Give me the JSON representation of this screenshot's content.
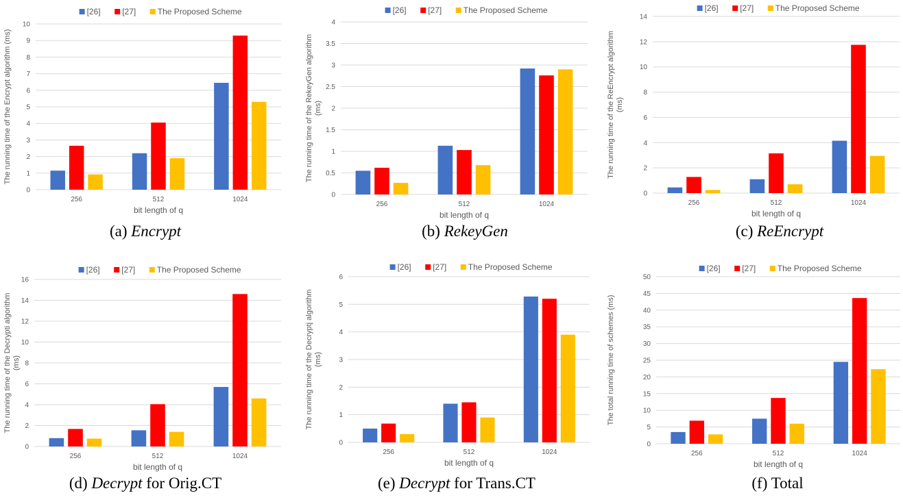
{
  "colors": {
    "s26": "#4472C4",
    "s27": "#FF0000",
    "proposed": "#FFC000",
    "grid": "#D9D9D9",
    "text": "#595959"
  },
  "chart_data": [
    {
      "type": "bar",
      "categories": [
        "256",
        "512",
        "1024"
      ],
      "series": [
        {
          "name": "[26]",
          "values": [
            1.15,
            2.2,
            6.45
          ]
        },
        {
          "name": "[27]",
          "values": [
            2.65,
            4.05,
            9.3
          ]
        },
        {
          "name": "The Proposed Scheme",
          "values": [
            0.92,
            1.9,
            5.3
          ]
        }
      ],
      "ylim": [
        0,
        10
      ],
      "yticks": [
        0,
        1,
        2,
        3,
        4,
        5,
        6,
        7,
        8,
        9,
        10
      ],
      "xlabel": "bit length of q",
      "ylabel": [
        "The  running time of the Encrypt algorithm (ms)"
      ],
      "grid": true,
      "legend": "top-center",
      "caption": {
        "label": "(a)",
        "name": "Encrypt",
        "suffix": ""
      }
    },
    {
      "type": "bar",
      "categories": [
        "256",
        "512",
        "1024"
      ],
      "series": [
        {
          "name": "[26]",
          "values": [
            0.55,
            1.13,
            2.92
          ]
        },
        {
          "name": "[27]",
          "values": [
            0.62,
            1.03,
            2.76
          ]
        },
        {
          "name": "The Proposed Scheme",
          "values": [
            0.27,
            0.68,
            2.9
          ]
        }
      ],
      "ylim": [
        0,
        4
      ],
      "yticks": [
        0,
        0.5,
        1,
        1.5,
        2,
        2.5,
        3,
        3.5,
        4
      ],
      "xlabel": "bit length of q",
      "ylabel": [
        "The running time of the RekeyGen algorithm",
        "(ms)"
      ],
      "grid": true,
      "legend": "top-center",
      "caption": {
        "label": "(b)",
        "name": "RekeyGen",
        "suffix": ""
      }
    },
    {
      "type": "bar",
      "categories": [
        "256",
        "512",
        "1024"
      ],
      "series": [
        {
          "name": "[26]",
          "values": [
            0.45,
            1.1,
            4.15
          ]
        },
        {
          "name": "[27]",
          "values": [
            1.28,
            3.15,
            11.75
          ]
        },
        {
          "name": "The Proposed Scheme",
          "values": [
            0.25,
            0.7,
            2.95
          ]
        }
      ],
      "ylim": [
        0,
        14
      ],
      "yticks": [
        0,
        2,
        4,
        6,
        8,
        10,
        12,
        14
      ],
      "xlabel": "bit length of q",
      "ylabel": [
        "The running time of the ReEncrypt algorithm",
        "(ms)"
      ],
      "grid": true,
      "legend": "top-center",
      "caption": {
        "label": "(c)",
        "name": "ReEncrypt",
        "suffix": ""
      }
    },
    {
      "type": "bar",
      "categories": [
        "256",
        "512",
        "1024"
      ],
      "series": [
        {
          "name": "[26]",
          "values": [
            0.8,
            1.55,
            5.7
          ]
        },
        {
          "name": "[27]",
          "values": [
            1.68,
            4.05,
            14.6
          ]
        },
        {
          "name": "The Proposed Scheme",
          "values": [
            0.75,
            1.4,
            4.6
          ]
        }
      ],
      "ylim": [
        0,
        16
      ],
      "yticks": [
        0,
        2,
        4,
        6,
        8,
        10,
        12,
        14,
        16
      ],
      "xlabel": "bit length of q",
      "ylabel": [
        "The running time of the Decrypti algorithm",
        "(ms)"
      ],
      "grid": true,
      "legend": "top-center",
      "caption": {
        "label": "(d)",
        "name": "Decrypt",
        "suffix": " for Orig.CT"
      }
    },
    {
      "type": "bar",
      "categories": [
        "256",
        "512",
        "1024"
      ],
      "series": [
        {
          "name": "[26]",
          "values": [
            0.5,
            1.4,
            5.28
          ]
        },
        {
          "name": "[27]",
          "values": [
            0.68,
            1.45,
            5.2
          ]
        },
        {
          "name": "The Proposed Scheme",
          "values": [
            0.3,
            0.9,
            3.9
          ]
        }
      ],
      "ylim": [
        0,
        6
      ],
      "yticks": [
        0,
        1,
        2,
        3,
        4,
        5,
        6
      ],
      "xlabel": "bit length of q",
      "ylabel": [
        "The running time of the Decryptj algorithm",
        "(ms)"
      ],
      "grid": true,
      "legend": "top-center",
      "caption": {
        "label": "(e)",
        "name": "Decrypt",
        "suffix": " for Trans.CT"
      }
    },
    {
      "type": "bar",
      "categories": [
        "256",
        "512",
        "1024"
      ],
      "series": [
        {
          "name": "[26]",
          "values": [
            3.5,
            7.5,
            24.5
          ]
        },
        {
          "name": "[27]",
          "values": [
            6.9,
            13.7,
            43.6
          ]
        },
        {
          "name": "The Proposed Scheme",
          "values": [
            2.8,
            6.0,
            22.3
          ]
        }
      ],
      "ylim": [
        0,
        50
      ],
      "yticks": [
        0,
        5,
        10,
        15,
        20,
        25,
        30,
        35,
        40,
        45,
        50
      ],
      "xlabel": "bit length of q",
      "ylabel": [
        "The total running time of schemes (ms)"
      ],
      "grid": true,
      "legend": "top-center",
      "caption": {
        "label": "(f)",
        "name": "",
        "suffix": "Total"
      }
    }
  ]
}
